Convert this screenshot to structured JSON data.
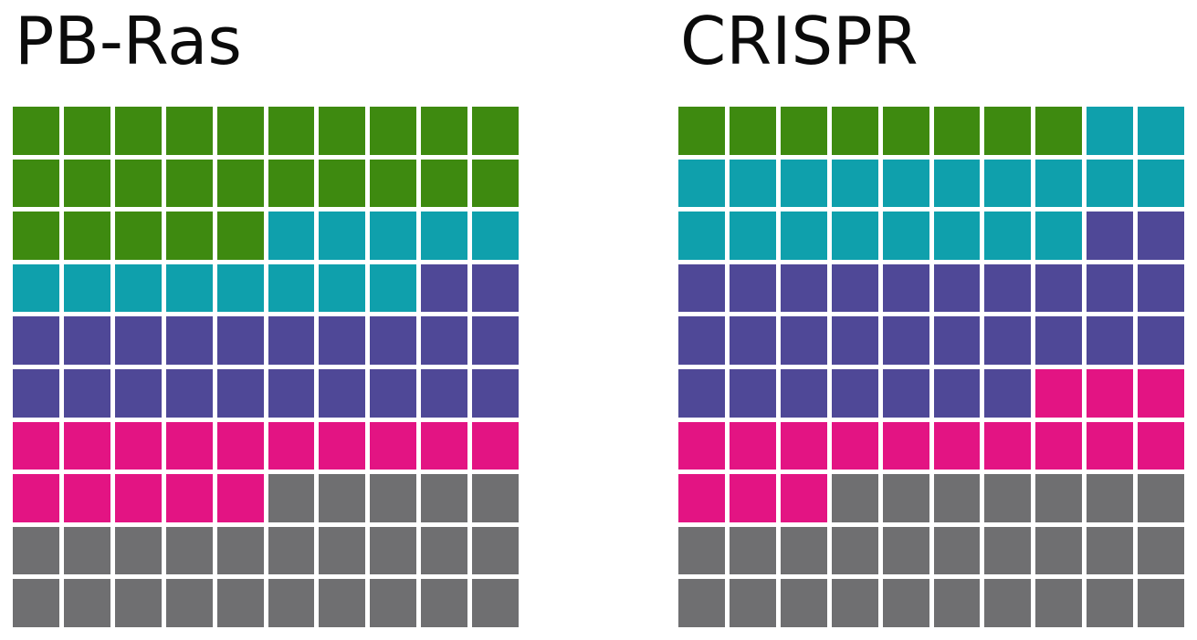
{
  "figure": {
    "background_color": "#ffffff",
    "title_color": "#0b0b0b"
  },
  "palette": {
    "green": "#3E8A10",
    "teal": "#0FA0AC",
    "purple": "#4F4897",
    "magenta": "#E31483",
    "gray": "#6F6F71"
  },
  "chart_data": [
    {
      "type": "waffle",
      "title": "PB-Ras",
      "grid_rows": 10,
      "grid_cols": 10,
      "total_cells": 100,
      "fill_order": "row-major-from-top-left",
      "series": [
        {
          "name": "green",
          "count": 25,
          "color": "#3E8A10"
        },
        {
          "name": "teal",
          "count": 13,
          "color": "#0FA0AC"
        },
        {
          "name": "purple",
          "count": 22,
          "color": "#4F4897"
        },
        {
          "name": "magenta",
          "count": 15,
          "color": "#E31483"
        },
        {
          "name": "gray",
          "count": 25,
          "color": "#6F6F71"
        }
      ]
    },
    {
      "type": "waffle",
      "title": "CRISPR",
      "grid_rows": 10,
      "grid_cols": 10,
      "total_cells": 100,
      "fill_order": "row-major-from-top-left",
      "series": [
        {
          "name": "green",
          "count": 8,
          "color": "#3E8A10"
        },
        {
          "name": "teal",
          "count": 20,
          "color": "#0FA0AC"
        },
        {
          "name": "purple",
          "count": 29,
          "color": "#4F4897"
        },
        {
          "name": "magenta",
          "count": 16,
          "color": "#E31483"
        },
        {
          "name": "gray",
          "count": 27,
          "color": "#6F6F71"
        }
      ]
    }
  ]
}
